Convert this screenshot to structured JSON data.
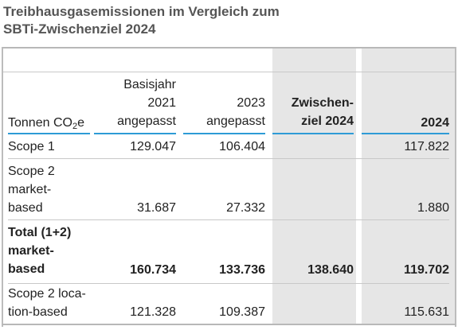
{
  "title_line1": "Treibhausgasemissionen im Vergleich zum",
  "title_line2": "SBTi-Zwischenziel 2024",
  "columns": {
    "unit_prefix": "Tonnen CO",
    "unit_sub": "2",
    "unit_suffix": "e",
    "base_year": "Basisjahr\n2021\nangepasst",
    "y2023": "2023\nangepasst",
    "interim": "Zwischen-\nziel 2024",
    "y2024": "2024"
  },
  "rows": [
    {
      "label": "Scope 1",
      "base": "129.047",
      "y2023": "106.404",
      "interim": "",
      "y2024": "117.822",
      "bold": false
    },
    {
      "label": "Scope 2\nmarket-\nbased",
      "base": "31.687",
      "y2023": "27.332",
      "interim": "",
      "y2024": "1.880",
      "bold": false
    },
    {
      "label": "Total (1+2)\nmarket-\nbased",
      "base": "160.734",
      "y2023": "133.736",
      "interim": "138.640",
      "y2024": "119.702",
      "bold": true
    },
    {
      "label": "Scope 2 loca-\ntion-based",
      "base": "121.328",
      "y2023": "109.387",
      "interim": "",
      "y2024": "115.631",
      "bold": false
    }
  ]
}
